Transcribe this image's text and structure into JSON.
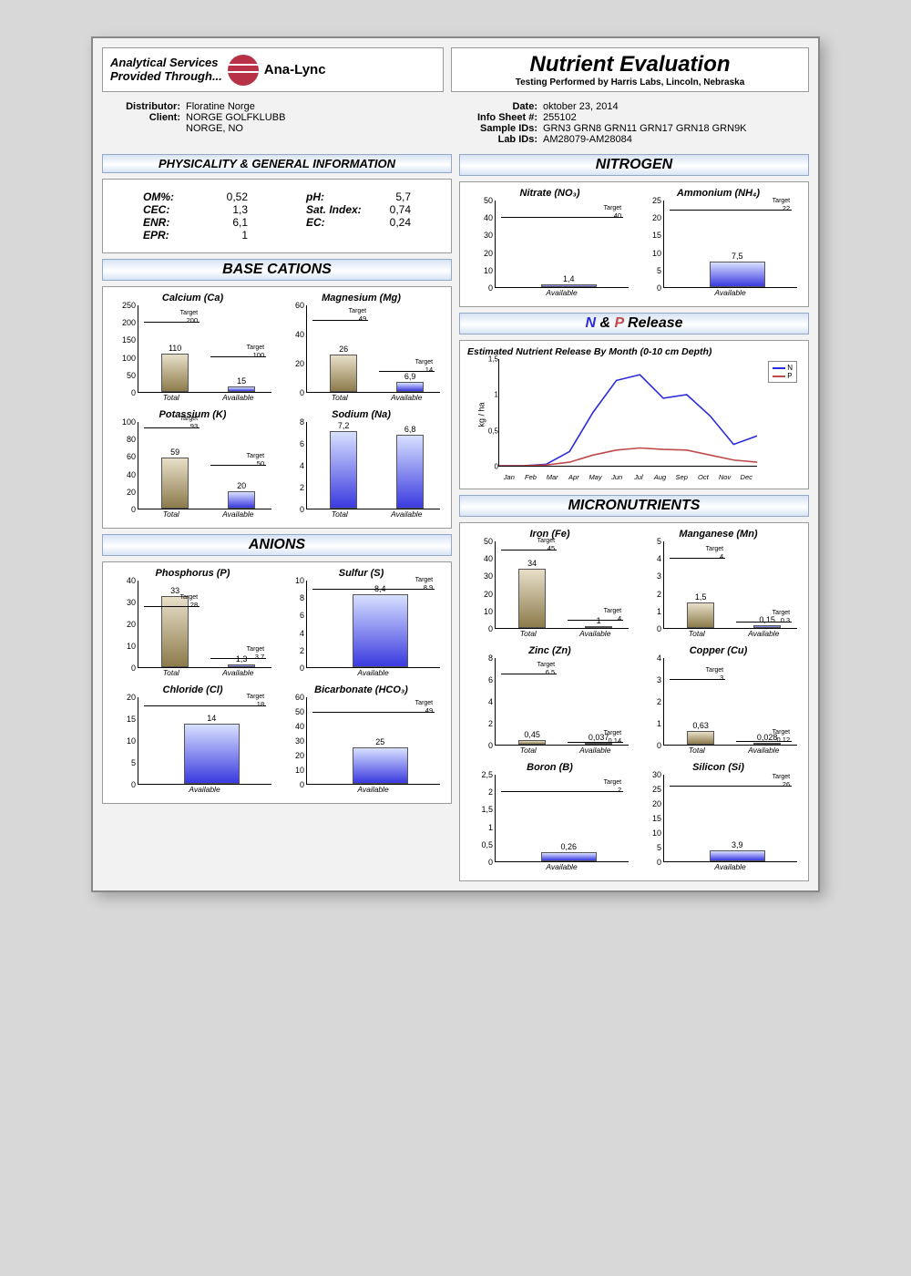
{
  "header": {
    "service_tag_line1": "Analytical Services",
    "service_tag_line2": "Provided Through...",
    "brand": "Ana-Lync",
    "title": "Nutrient Evaluation",
    "subtitle": "Testing Performed by Harris Labs, Lincoln, Nebraska",
    "logo_color": "#b73246"
  },
  "meta_left": [
    {
      "k": "Distributor:",
      "v": "Floratine Norge"
    },
    {
      "k": "Client:",
      "v": "NORGE GOLFKLUBB"
    },
    {
      "k": "",
      "v": "NORGE, NO"
    }
  ],
  "meta_right": [
    {
      "k": "Date:",
      "v": "oktober 23, 2014"
    },
    {
      "k": "Info Sheet #:",
      "v": "255102"
    },
    {
      "k": "Sample IDs:",
      "v": "GRN3 GRN8 GRN11 GRN17 GRN18 GRN9K"
    },
    {
      "k": "Lab IDs:",
      "v": "AM28079-AM28084"
    }
  ],
  "phys_header": "PHYSICALITY & GENERAL INFORMATION",
  "phys": {
    "left": [
      {
        "k": "OM%:",
        "v": "0,52"
      },
      {
        "k": "CEC:",
        "v": "1,3"
      },
      {
        "k": "ENR:",
        "v": "6,1"
      },
      {
        "k": "EPR:",
        "v": "1"
      }
    ],
    "right": [
      {
        "k": "pH:",
        "v": "5,7"
      },
      {
        "k": "Sat. Index:",
        "v": "0,74"
      },
      {
        "k": "EC:",
        "v": "0,24"
      }
    ]
  },
  "colors": {
    "brown_bar": "#8c7b4b",
    "blue_bar": "#3a3adf"
  },
  "sections": {
    "base": "BASE CATIONS",
    "anions": "ANIONS",
    "nitrogen": "NITROGEN",
    "np": "N & P Release",
    "micro": "MICRONUTRIENTS"
  },
  "charts": {
    "calcium": {
      "title": "Calcium (Ca)",
      "ymax": 250,
      "ystep": 50,
      "bars": [
        {
          "label": "Total",
          "value": 110,
          "target": 200,
          "color": "brown"
        },
        {
          "label": "Available",
          "value": 15,
          "target": 100,
          "color": "blue"
        }
      ]
    },
    "magnesium": {
      "title": "Magnesium (Mg)",
      "ymax": 60,
      "ystep": 20,
      "bars": [
        {
          "label": "Total",
          "value": 26,
          "target": 49,
          "color": "brown"
        },
        {
          "label": "Available",
          "value": 6.9,
          "display": "6,9",
          "target": 14,
          "color": "blue"
        }
      ]
    },
    "potassium": {
      "title": "Potassium (K)",
      "ymax": 100,
      "ystep": 20,
      "bars": [
        {
          "label": "Total",
          "value": 59,
          "target": 93,
          "color": "brown"
        },
        {
          "label": "Available",
          "value": 20,
          "target": 50,
          "color": "blue"
        }
      ]
    },
    "sodium": {
      "title": "Sodium (Na)",
      "ymax": 8,
      "ystep": 2,
      "bars": [
        {
          "label": "Total",
          "value": 7.2,
          "display": "7,2",
          "color": "blue"
        },
        {
          "label": "Available",
          "value": 6.8,
          "display": "6,8",
          "color": "blue"
        }
      ]
    },
    "phosphorus": {
      "title": "Phosphorus (P)",
      "ymax": 40,
      "ystep": 10,
      "bars": [
        {
          "label": "Total",
          "value": 33,
          "target": 28,
          "color": "brown"
        },
        {
          "label": "Available",
          "value": 1.3,
          "display": "1,3",
          "target": 3.7,
          "target_display": "3.7",
          "color": "blue"
        }
      ]
    },
    "sulfur": {
      "title": "Sulfur (S)",
      "ymax": 10,
      "ystep": 2,
      "bars": [
        {
          "label": "Available",
          "value": 8.4,
          "display": "8,4",
          "target": 8.9,
          "target_display": "8.9",
          "color": "blue"
        }
      ]
    },
    "chloride": {
      "title": "Chloride (Cl)",
      "ymax": 20,
      "ystep": 5,
      "bars": [
        {
          "label": "Available",
          "value": 14,
          "target": 18,
          "color": "blue"
        }
      ]
    },
    "bicarb": {
      "title": "Bicarbonate (HCO₃)",
      "ymax": 60,
      "ystep": 10,
      "bars": [
        {
          "label": "Available",
          "value": 25,
          "target": 49,
          "color": "blue"
        }
      ]
    },
    "nitrate": {
      "title": "Nitrate (NO₃)",
      "ymax": 50,
      "ystep": 10,
      "bars": [
        {
          "label": "Available",
          "value": 1.4,
          "display": "1,4",
          "target": 40,
          "color": "blue"
        }
      ]
    },
    "ammonium": {
      "title": "Ammonium (NH₄)",
      "ymax": 25,
      "ystep": 5,
      "bars": [
        {
          "label": "Available",
          "value": 7.5,
          "display": "7,5",
          "target": 22,
          "color": "blue"
        }
      ]
    },
    "iron": {
      "title": "Iron (Fe)",
      "ymax": 50,
      "ystep": 10,
      "bars": [
        {
          "label": "Total",
          "value": 34,
          "target": 45,
          "color": "brown"
        },
        {
          "label": "Available",
          "value": 1,
          "target": 4,
          "color": "blue"
        }
      ]
    },
    "manganese": {
      "title": "Manganese (Mn)",
      "ymax": 5,
      "ystep": 1,
      "bars": [
        {
          "label": "Total",
          "value": 1.5,
          "display": "1,5",
          "target": 4,
          "color": "brown"
        },
        {
          "label": "Available",
          "value": 0.15,
          "display": "0,15",
          "target": 0.3,
          "target_display": "0.3",
          "color": "blue"
        }
      ]
    },
    "zinc": {
      "title": "Zinc (Zn)",
      "ymax": 8,
      "ystep": 2,
      "bars": [
        {
          "label": "Total",
          "value": 0.45,
          "display": "0,45",
          "target": 6.5,
          "target_display": "6.5",
          "color": "brown"
        },
        {
          "label": "Available",
          "value": 0.037,
          "display": "0,037",
          "target": 0.14,
          "target_display": "0.14",
          "color": "blue"
        }
      ]
    },
    "copper": {
      "title": "Copper (Cu)",
      "ymax": 4,
      "ystep": 1,
      "bars": [
        {
          "label": "Total",
          "value": 0.63,
          "display": "0,63",
          "target": 3,
          "color": "brown"
        },
        {
          "label": "Available",
          "value": 0.028,
          "display": "0,028",
          "target": 0.12,
          "target_display": "0.12",
          "color": "blue"
        }
      ]
    },
    "boron": {
      "title": "Boron (B)",
      "ymax": 2.5,
      "ystep": 0.5,
      "bars": [
        {
          "label": "Available",
          "value": 0.26,
          "display": "0,26",
          "target": 2,
          "color": "blue"
        }
      ]
    },
    "silicon": {
      "title": "Silicon (Si)",
      "ymax": 30,
      "ystep": 5,
      "bars": [
        {
          "label": "Available",
          "value": 3.9,
          "display": "3,9",
          "target": 26,
          "color": "blue"
        }
      ]
    }
  },
  "np_release": {
    "subtitle": "Estimated Nutrient Release By Month (0-10 cm Depth)",
    "ylabel": "kg / ha",
    "ymax": 1.5,
    "ystep": 0.5,
    "months": [
      "Jan",
      "Feb",
      "Mar",
      "Apr",
      "May",
      "Jun",
      "Jul",
      "Aug",
      "Sep",
      "Oct",
      "Nov",
      "Dec"
    ],
    "series": [
      {
        "name": "N",
        "color": "#2a2add",
        "values": [
          0.0,
          0.0,
          0.02,
          0.2,
          0.75,
          1.2,
          1.28,
          0.95,
          1.0,
          0.7,
          0.3,
          0.42
        ]
      },
      {
        "name": "P",
        "color": "#c04a4a",
        "values": [
          0.0,
          0.0,
          0.01,
          0.05,
          0.15,
          0.22,
          0.25,
          0.23,
          0.22,
          0.15,
          0.08,
          0.05
        ]
      }
    ]
  }
}
